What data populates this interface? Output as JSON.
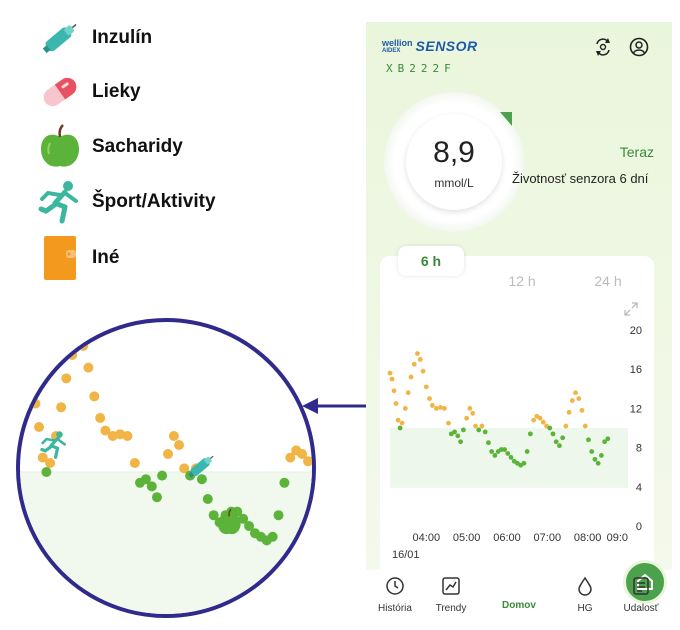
{
  "legend": [
    {
      "label": "Inzulín",
      "icon": "insulin-pen-icon",
      "color": "#3bb7b0"
    },
    {
      "label": "Lieky",
      "icon": "pill-icon",
      "color": "#f19aa5"
    },
    {
      "label": "Sacharidy",
      "icon": "apple-icon",
      "color": "#5cb33a"
    },
    {
      "label": "Šport/Aktivity",
      "icon": "runner-icon",
      "color": "#3bb7a0"
    },
    {
      "label": "Iné",
      "icon": "wallet-icon",
      "color": "#f39a1e"
    }
  ],
  "app": {
    "brand_small_top": "wellion",
    "brand_small_bottom": "AIDEX",
    "brand_main": "SENSOR",
    "serial": "XB222F",
    "glucose_value": "8,9",
    "glucose_unit": "mmol/L",
    "time_label": "Teraz",
    "sensor_life": "Životnosť senzora 6 dní"
  },
  "tabs": [
    "6 h",
    "12 h",
    "24 h"
  ],
  "active_tab": "6 h",
  "chart_data": {
    "type": "scatter",
    "x_tick_labels": [
      "04:00",
      "05:00",
      "06:00",
      "07:00",
      "08:00",
      "09:0"
    ],
    "date_label": "16/01",
    "y_ticks": [
      0,
      4,
      8,
      12,
      16,
      20
    ],
    "ylim": [
      0,
      20
    ],
    "xlim": [
      3.1,
      9.0
    ],
    "target_range": [
      3.9,
      10.0
    ],
    "colors": {
      "in_range": "#5cb33a",
      "high": "#f0b545"
    },
    "high_threshold": 10.0,
    "points": [
      [
        3.1,
        15.6
      ],
      [
        3.15,
        15.0
      ],
      [
        3.2,
        13.8
      ],
      [
        3.25,
        12.5
      ],
      [
        3.3,
        10.8
      ],
      [
        3.35,
        10.0
      ],
      [
        3.4,
        10.5
      ],
      [
        3.48,
        12.0
      ],
      [
        3.55,
        13.6
      ],
      [
        3.62,
        15.2
      ],
      [
        3.7,
        16.5
      ],
      [
        3.78,
        17.6
      ],
      [
        3.85,
        17.0
      ],
      [
        3.92,
        15.8
      ],
      [
        4.0,
        14.2
      ],
      [
        4.08,
        13.0
      ],
      [
        4.15,
        12.3
      ],
      [
        4.25,
        12.0
      ],
      [
        4.35,
        12.1
      ],
      [
        4.45,
        12.0
      ],
      [
        4.55,
        10.5
      ],
      [
        4.62,
        9.4
      ],
      [
        4.7,
        9.6
      ],
      [
        4.78,
        9.2
      ],
      [
        4.85,
        8.6
      ],
      [
        4.92,
        9.8
      ],
      [
        5.0,
        11.0
      ],
      [
        5.08,
        12.0
      ],
      [
        5.15,
        11.5
      ],
      [
        5.22,
        10.2
      ],
      [
        5.3,
        9.8
      ],
      [
        5.38,
        10.2
      ],
      [
        5.46,
        9.6
      ],
      [
        5.54,
        8.5
      ],
      [
        5.62,
        7.6
      ],
      [
        5.7,
        7.2
      ],
      [
        5.78,
        7.6
      ],
      [
        5.86,
        7.8
      ],
      [
        5.94,
        7.8
      ],
      [
        6.02,
        7.4
      ],
      [
        6.1,
        7.0
      ],
      [
        6.18,
        6.6
      ],
      [
        6.26,
        6.4
      ],
      [
        6.34,
        6.2
      ],
      [
        6.42,
        6.4
      ],
      [
        6.5,
        7.6
      ],
      [
        6.58,
        9.4
      ],
      [
        6.66,
        10.8
      ],
      [
        6.74,
        11.2
      ],
      [
        6.82,
        11.0
      ],
      [
        6.9,
        10.6
      ],
      [
        6.98,
        10.2
      ],
      [
        7.06,
        10.0
      ],
      [
        7.14,
        9.4
      ],
      [
        7.22,
        8.6
      ],
      [
        7.3,
        8.2
      ],
      [
        7.38,
        9.0
      ],
      [
        7.46,
        10.2
      ],
      [
        7.54,
        11.6
      ],
      [
        7.62,
        12.8
      ],
      [
        7.7,
        13.6
      ],
      [
        7.78,
        13.0
      ],
      [
        7.86,
        11.8
      ],
      [
        7.94,
        10.2
      ],
      [
        8.02,
        8.8
      ],
      [
        8.1,
        7.6
      ],
      [
        8.18,
        6.8
      ],
      [
        8.26,
        6.4
      ],
      [
        8.34,
        7.2
      ],
      [
        8.42,
        8.6
      ],
      [
        8.5,
        8.9
      ]
    ]
  },
  "nav": [
    {
      "label": "História",
      "icon": "history-icon"
    },
    {
      "label": "Trendy",
      "icon": "trend-icon"
    },
    {
      "label": "Domov",
      "icon": "home-icon"
    },
    {
      "label": "HG",
      "icon": "drop-icon"
    },
    {
      "label": "Udalosť",
      "icon": "event-icon"
    }
  ],
  "zoom_colors": {
    "border": "#2f2a8c",
    "arrow": "#2f2a8c"
  }
}
